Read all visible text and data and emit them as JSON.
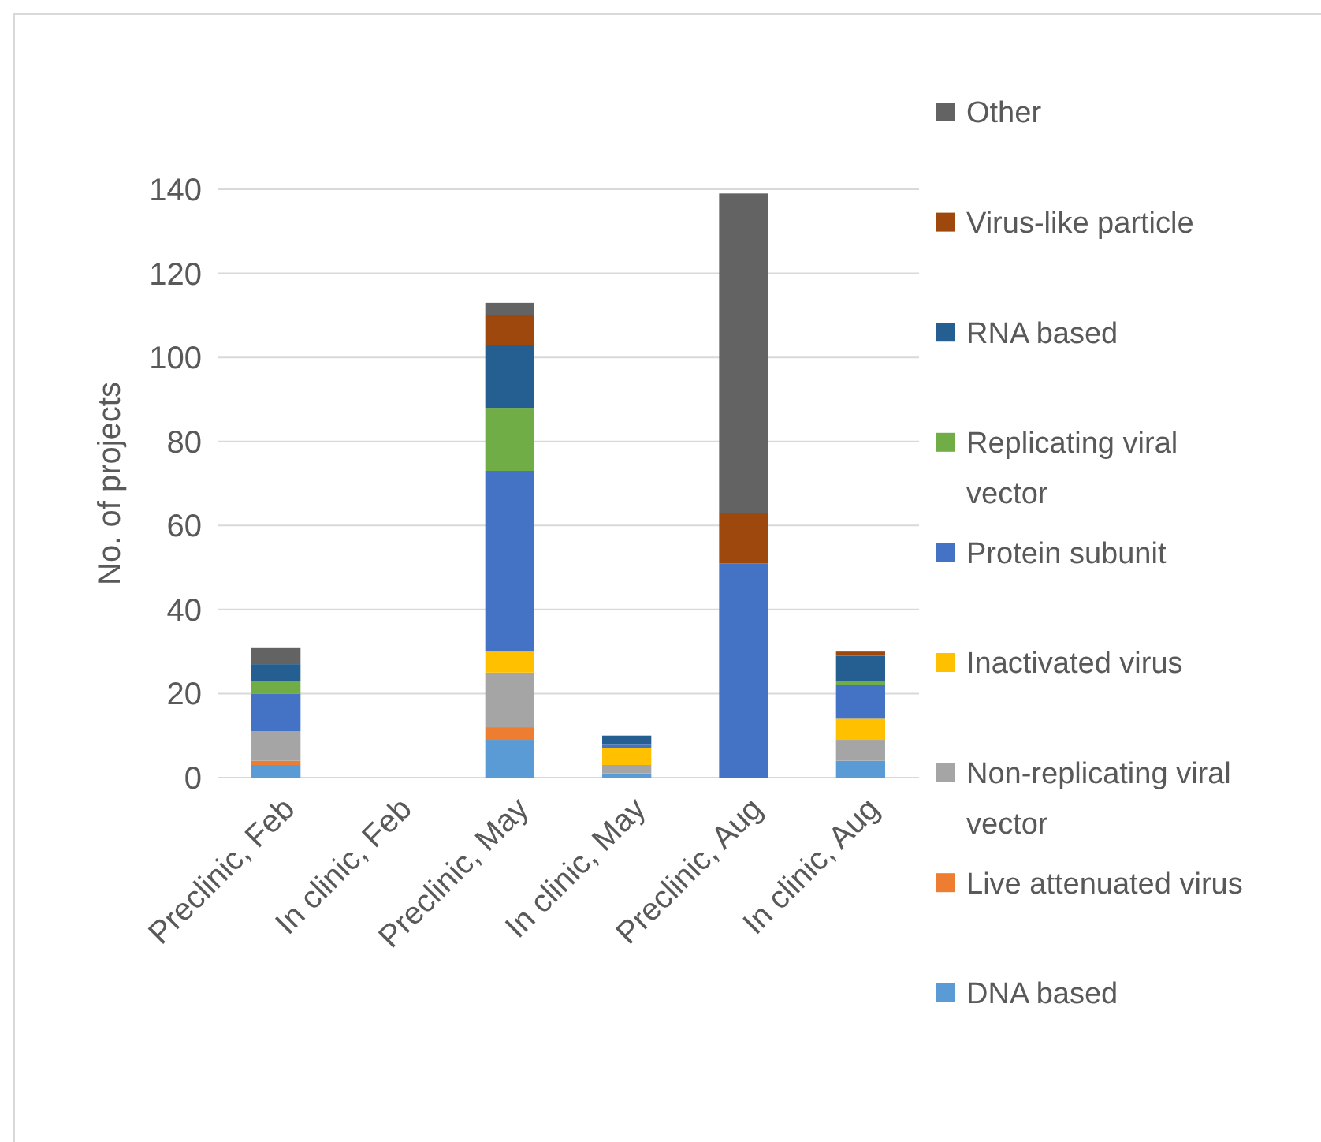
{
  "chart_data": {
    "type": "bar",
    "stacked": true,
    "ylabel": "No. of projects",
    "categories": [
      "Preclinic, Feb",
      "In clinic, Feb",
      "Preclinic, May",
      "In clinic, May",
      "Preclinic, Aug",
      "In clinic, Aug"
    ],
    "series": [
      {
        "name": "DNA based",
        "color": "#5b9bd5",
        "values": [
          3,
          0,
          9,
          1,
          0,
          4
        ]
      },
      {
        "name": "Live attenuated virus",
        "color": "#ed7d31",
        "values": [
          1,
          0,
          3,
          0,
          0,
          0
        ]
      },
      {
        "name": "Non-replicating viral vector",
        "color": "#a5a5a5",
        "values": [
          7,
          0,
          13,
          2,
          0,
          5
        ]
      },
      {
        "name": "Inactivated virus",
        "color": "#ffc000",
        "values": [
          0,
          0,
          5,
          4,
          0,
          5
        ]
      },
      {
        "name": "Protein subunit",
        "color": "#4472c4",
        "values": [
          9,
          0,
          43,
          1,
          51,
          8
        ]
      },
      {
        "name": "Replicating viral vector",
        "color": "#70ad47",
        "values": [
          3,
          0,
          15,
          0,
          0,
          1
        ]
      },
      {
        "name": "RNA based",
        "color": "#255e91",
        "values": [
          4,
          0,
          15,
          2,
          0,
          6
        ]
      },
      {
        "name": "Virus-like particle",
        "color": "#9e480e",
        "values": [
          0,
          0,
          7,
          0,
          12,
          1
        ]
      },
      {
        "name": "Other",
        "color": "#636363",
        "values": [
          4,
          0,
          3,
          0,
          76,
          0
        ]
      }
    ],
    "ylim": [
      0,
      140
    ],
    "yticks": [
      0,
      20,
      40,
      60,
      80,
      100,
      120,
      140
    ],
    "grid": "y",
    "legend": "right"
  }
}
